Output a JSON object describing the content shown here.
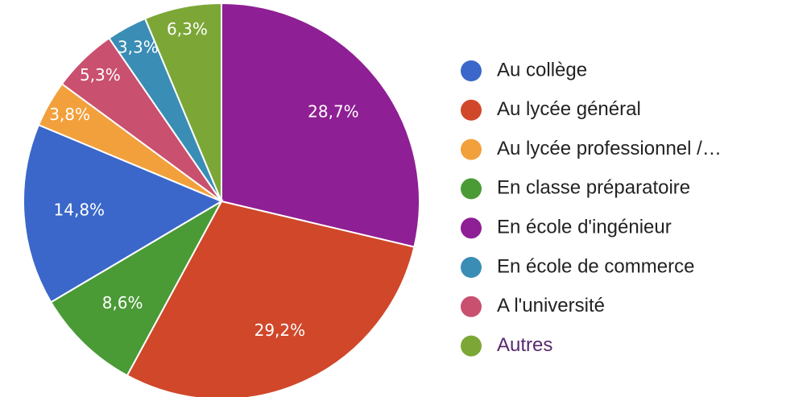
{
  "chart_data": {
    "type": "pie",
    "values": [
      28.7,
      29.2,
      8.6,
      14.8,
      3.8,
      5.3,
      3.3,
      6.3
    ],
    "value_labels": [
      "28,7%",
      "29,2%",
      "8,6%",
      "14,8%",
      "3,8%",
      "5,3%",
      "3,3%",
      "6,3%"
    ],
    "colors": [
      "#8e1f94",
      "#d0472a",
      "#4a9a36",
      "#3a67c9",
      "#f2a03c",
      "#c9506f",
      "#3a8db5",
      "#7ca737"
    ],
    "legend": [
      {
        "name": "Au collège",
        "color": "#3a67c9"
      },
      {
        "name": "Au lycée général",
        "color": "#d0472a"
      },
      {
        "name": "Au lycée professionnel /…",
        "color": "#f2a03c"
      },
      {
        "name": "En classe préparatoire",
        "color": "#4a9a36"
      },
      {
        "name": "En école d'ingénieur",
        "color": "#8e1f94"
      },
      {
        "name": "En école de commerce",
        "color": "#3a8db5"
      },
      {
        "name": "A l'université",
        "color": "#c9506f"
      },
      {
        "name": "Autres",
        "color": "#7ca737"
      }
    ]
  }
}
